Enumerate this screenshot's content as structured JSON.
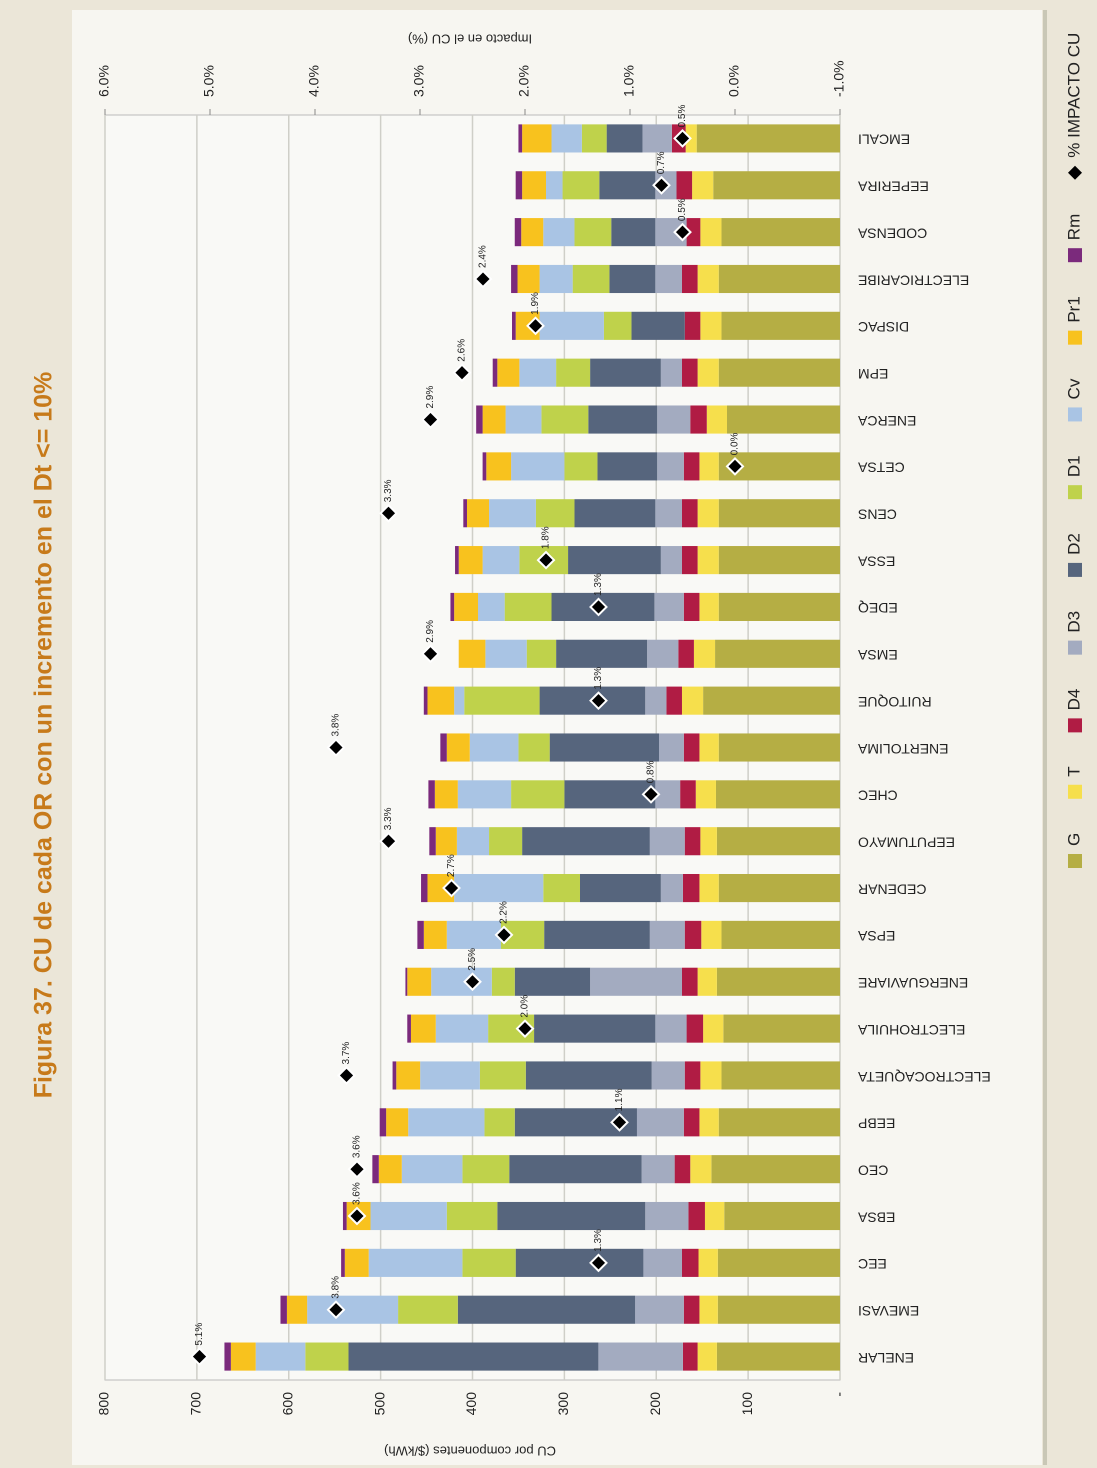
{
  "chart_data": {
    "type": "bar",
    "stacked": true,
    "title": "Figura 37. CU de cada OR con un incremento en el Dt <= 10%",
    "ylabel": "CU por componentes ($/kWh)",
    "y2label": "Impacto en el CU (%)",
    "categories": [
      "ENELAR",
      "EMEVASI",
      "EEC",
      "EBSA",
      "CEO",
      "EEBP",
      "ELECTROCAQUETA",
      "ELECTROHUILA",
      "ENERGUAVIARE",
      "EPSA",
      "CEDENAR",
      "EEPUTUMAYO",
      "CHEC",
      "ENERTOLIMA",
      "RUITOQUE",
      "EMSA",
      "EDEQ",
      "ESSA",
      "CENS",
      "CETSA",
      "ENERCA",
      "EPM",
      "DISPAC",
      "ELECTRICARIBE",
      "CODENSA",
      "EEPERIRA",
      "EMCALI"
    ],
    "ylim": [
      0,
      800
    ],
    "yticks": [
      {
        "value": 0,
        "label": "-"
      },
      100,
      200,
      300,
      400,
      500,
      600,
      700,
      800
    ],
    "y2lim": [
      -1,
      6
    ],
    "y2ticks": [
      {
        "value": -1,
        "label": "-1.0%"
      },
      {
        "value": 0,
        "label": "0.0%"
      },
      {
        "value": 1,
        "label": "1.0%"
      },
      {
        "value": 2,
        "label": "2.0%"
      },
      {
        "value": 3,
        "label": "3.0%"
      },
      {
        "value": 4,
        "label": "4.0%"
      },
      {
        "value": 5,
        "label": "5.0%"
      },
      {
        "value": 6,
        "label": "6.0%"
      }
    ],
    "grid": true,
    "legend": "bottom",
    "series": [
      {
        "name": "G",
        "color": "#b5ae44",
        "values": [
          134,
          133,
          133,
          126,
          140,
          132,
          129,
          127,
          134,
          129,
          132,
          134,
          135,
          132,
          149,
          136,
          132,
          132,
          132,
          132,
          123,
          132,
          129,
          132,
          129,
          138,
          156
        ]
      },
      {
        "name": "T",
        "color": "#f6df4c",
        "values": [
          21,
          20,
          21,
          21,
          23,
          21,
          23,
          22,
          21,
          22,
          21,
          18,
          22,
          21,
          23,
          23,
          21,
          23,
          23,
          21,
          22,
          23,
          23,
          23,
          23,
          23,
          12
        ]
      },
      {
        "name": "D4",
        "color": "#b01c44",
        "values": [
          16,
          17,
          18,
          18,
          17,
          17,
          17,
          18,
          17,
          18,
          18,
          17,
          17,
          17,
          17,
          17,
          17,
          17,
          17,
          17,
          18,
          17,
          17,
          17,
          15,
          17,
          15
        ]
      },
      {
        "name": "D3",
        "color": "#a3abc0",
        "values": [
          92,
          53,
          42,
          47,
          36,
          51,
          36,
          34,
          100,
          38,
          24,
          38,
          27,
          27,
          23,
          34,
          32,
          23,
          29,
          29,
          36,
          23,
          0,
          29,
          34,
          23,
          32
        ]
      },
      {
        "name": "D2",
        "color": "#56657d",
        "values": [
          272,
          193,
          139,
          161,
          144,
          133,
          137,
          132,
          82,
          115,
          88,
          139,
          99,
          119,
          115,
          99,
          112,
          101,
          88,
          65,
          75,
          77,
          58,
          50,
          48,
          61,
          39
        ]
      },
      {
        "name": "D1",
        "color": "#bfd24b",
        "values": [
          47,
          65,
          58,
          55,
          51,
          33,
          50,
          50,
          25,
          47,
          40,
          36,
          58,
          34,
          82,
          32,
          51,
          53,
          42,
          36,
          51,
          37,
          30,
          40,
          40,
          40,
          27
        ]
      },
      {
        "name": "Cv",
        "color": "#a9c4e4",
        "values": [
          54,
          99,
          102,
          83,
          66,
          83,
          65,
          57,
          66,
          59,
          97,
          35,
          58,
          53,
          11,
          45,
          29,
          40,
          51,
          58,
          39,
          40,
          70,
          36,
          34,
          18,
          33
        ]
      },
      {
        "name": "Pr1",
        "color": "#f8c21e",
        "values": [
          27,
          22,
          26,
          26,
          25,
          24,
          26,
          27,
          26,
          25,
          29,
          23,
          25,
          25,
          29,
          29,
          26,
          26,
          24,
          27,
          25,
          24,
          26,
          24,
          24,
          26,
          32
        ]
      },
      {
        "name": "Rm",
        "color": "#7b2a7c",
        "values": [
          7,
          7,
          4,
          4,
          7,
          7,
          4,
          4,
          2,
          7,
          7,
          7,
          7,
          7,
          4,
          0,
          4,
          4,
          4,
          4,
          7,
          5,
          4,
          7,
          7,
          7,
          4
        ]
      },
      {
        "name": "% IMPACTO CU",
        "color": "#000000",
        "axis": "y2",
        "marker": "diamond",
        "values": [
          5.1,
          3.8,
          1.3,
          3.6,
          3.6,
          1.1,
          3.7,
          2.0,
          2.5,
          2.2,
          2.7,
          3.3,
          0.8,
          3.8,
          1.3,
          2.9,
          1.3,
          1.8,
          3.3,
          0.0,
          2.9,
          2.6,
          1.9,
          2.4,
          0.5,
          0.7,
          0.5
        ],
        "value_labels": [
          "5.1%",
          "3.8%",
          "1.3%",
          "3.6%",
          "3.6%",
          "1.1%",
          "3.7%",
          "2.0%",
          "2.5%",
          "2.2%",
          "2.7%",
          "3.3%",
          "0.8%",
          "3.8%",
          "1.3%",
          "2.9%",
          "1.3%",
          "1.8%",
          "3.3%",
          "0.0%",
          "2.9%",
          "2.6%",
          "1.9%",
          "2.4%",
          "0.5%",
          "0.7%",
          "0.5%"
        ]
      }
    ]
  }
}
